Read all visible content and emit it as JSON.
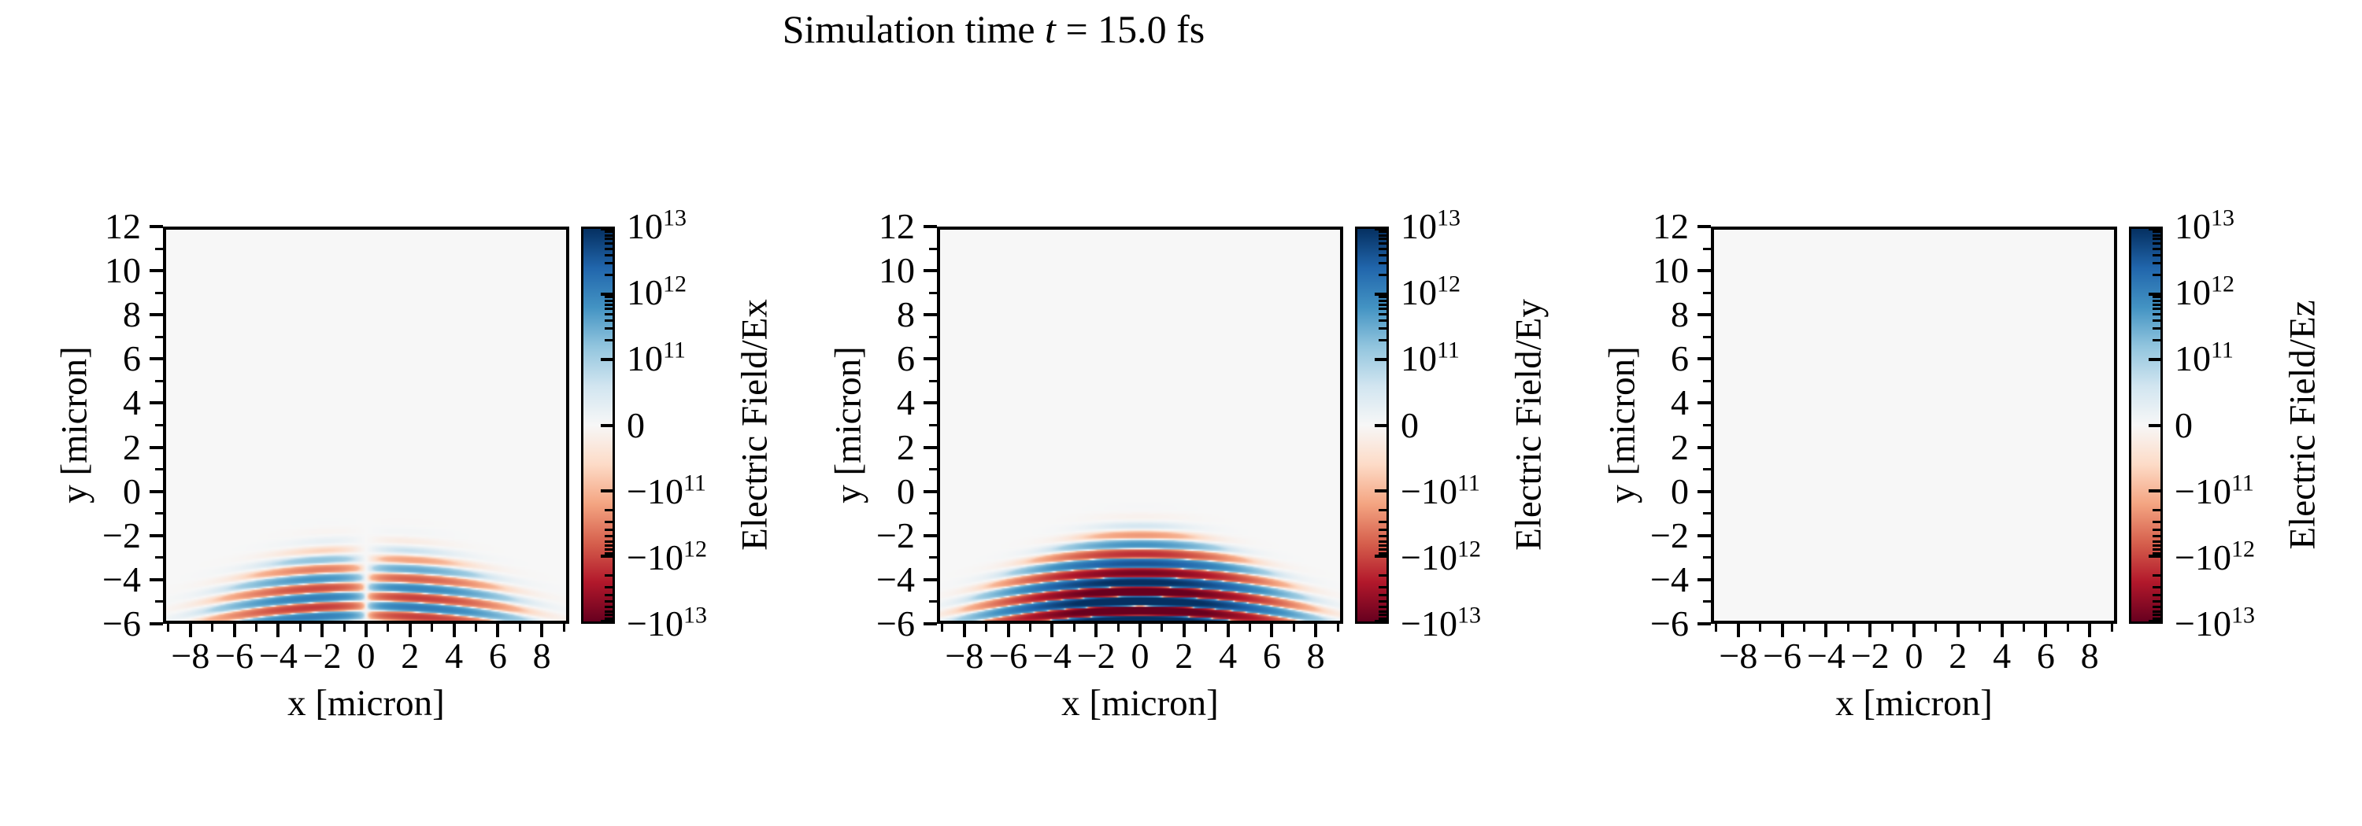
{
  "figure": {
    "title": {
      "prefix": "Simulation time ",
      "variable": "t",
      "suffix": " = 15.0 fs",
      "full": "Simulation time t = 15.0 fs"
    },
    "background_color": "#ffffff",
    "text_color": "#000000"
  },
  "colormap": {
    "name": "RdBu",
    "stops": [
      "#67001f",
      "#b2182b",
      "#d6604d",
      "#f4a582",
      "#fddbc7",
      "#f7f7f7",
      "#d1e5f0",
      "#92c5de",
      "#4393c3",
      "#2166ac",
      "#053061"
    ],
    "zero_color": "#f7f7f7"
  },
  "chart_data": [
    {
      "type": "heatmap",
      "component": "Ex",
      "xlabel": "x [micron]",
      "ylabel": "y [micron]",
      "xlim": [
        -9.25,
        9.25
      ],
      "ylim": [
        -6,
        12
      ],
      "xticks": [
        -8,
        -6,
        -4,
        -2,
        0,
        2,
        4,
        6,
        8
      ],
      "yticks": [
        12,
        10,
        8,
        6,
        4,
        2,
        0,
        -2,
        -4,
        -6
      ],
      "minor_tick_step": 1,
      "grid": false,
      "colorbar": {
        "label": "Electric Field/Ex",
        "scale": "symlog",
        "linthresh": 100000000000.0,
        "vmin": -10000000000000.0,
        "vmax": 10000000000000.0,
        "tick_values": [
          10000000000000.0,
          1000000000000.0,
          100000000000.0,
          0,
          -100000000000.0,
          -1000000000000.0,
          -10000000000000.0
        ],
        "tick_labels": [
          "10^13",
          "10^12",
          "10^11",
          "0",
          "-10^11",
          "-10^12",
          "-10^13"
        ]
      },
      "field_model": {
        "kind": "focused-gaussian-laser-pulse",
        "polarity": "antisymmetric-x",
        "amplitude": 1300000000000.0,
        "wavelength_um": 0.88,
        "phase0_rad": 0.29,
        "y_center": -5.4,
        "y_sigma": 1.55,
        "waist_um": 2.2,
        "spread_per_um": 0.37,
        "spread_start_y": -2,
        "curvature_per_um": 0.012
      }
    },
    {
      "type": "heatmap",
      "component": "Ey",
      "xlabel": "x [micron]",
      "ylabel": "y [micron]",
      "xlim": [
        -9.25,
        9.25
      ],
      "ylim": [
        -6,
        12
      ],
      "xticks": [
        -8,
        -6,
        -4,
        -2,
        0,
        2,
        4,
        6,
        8
      ],
      "yticks": [
        12,
        10,
        8,
        6,
        4,
        2,
        0,
        -2,
        -4,
        -6
      ],
      "minor_tick_step": 1,
      "grid": false,
      "colorbar": {
        "label": "Electric Field/Ey",
        "scale": "symlog",
        "linthresh": 100000000000.0,
        "vmin": -10000000000000.0,
        "vmax": 10000000000000.0,
        "tick_values": [
          10000000000000.0,
          1000000000000.0,
          100000000000.0,
          0,
          -100000000000.0,
          -1000000000000.0,
          -10000000000000.0
        ],
        "tick_labels": [
          "10^13",
          "10^12",
          "10^11",
          "0",
          "-10^11",
          "-10^12",
          "-10^13"
        ]
      },
      "field_model": {
        "kind": "focused-gaussian-laser-pulse",
        "polarity": "symmetric",
        "amplitude": 22000000000000.0,
        "wavelength_um": 0.88,
        "phase0_rad": 0.29,
        "y_center": -5.4,
        "y_sigma": 1.55,
        "waist_um": 2.2,
        "spread_per_um": 0.37,
        "spread_start_y": -2,
        "curvature_per_um": 0.012
      }
    },
    {
      "type": "heatmap",
      "component": "Ez",
      "xlabel": "x [micron]",
      "ylabel": "y [micron]",
      "xlim": [
        -9.25,
        9.25
      ],
      "ylim": [
        -6,
        12
      ],
      "xticks": [
        -8,
        -6,
        -4,
        -2,
        0,
        2,
        4,
        6,
        8
      ],
      "yticks": [
        12,
        10,
        8,
        6,
        4,
        2,
        0,
        -2,
        -4,
        -6
      ],
      "minor_tick_step": 1,
      "grid": false,
      "colorbar": {
        "label": "Electric Field/Ez",
        "scale": "symlog",
        "linthresh": 100000000000.0,
        "vmin": -10000000000000.0,
        "vmax": 10000000000000.0,
        "tick_values": [
          10000000000000.0,
          1000000000000.0,
          100000000000.0,
          0,
          -100000000000.0,
          -1000000000000.0,
          -10000000000000.0
        ],
        "tick_labels": [
          "10^13",
          "10^12",
          "10^11",
          "0",
          "-10^11",
          "-10^12",
          "-10^13"
        ]
      },
      "field_model": {
        "kind": "zero-field",
        "polarity": "none",
        "amplitude": 0,
        "wavelength_um": 0.88,
        "phase0_rad": 0.29,
        "y_center": -5.4,
        "y_sigma": 1.55,
        "waist_um": 2.2,
        "spread_per_um": 0.37,
        "spread_start_y": -2,
        "curvature_per_um": 0.012
      }
    }
  ]
}
